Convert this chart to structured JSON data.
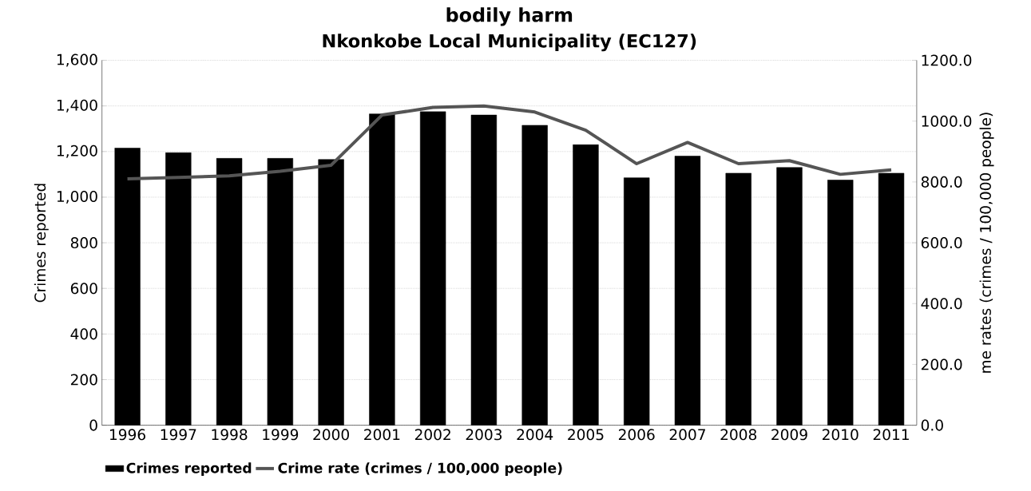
{
  "chart_data": {
    "type": "bar",
    "title": "bodily harm",
    "subtitle": "Nkonkobe Local Municipality (EC127)",
    "ylabel": "Crimes reported",
    "y2label": "me rates (crimes / 100,000 people)",
    "categories": [
      "1996",
      "1997",
      "1998",
      "1999",
      "2000",
      "2001",
      "2002",
      "2003",
      "2004",
      "2005",
      "2006",
      "2007",
      "2008",
      "2009",
      "2010",
      "2011"
    ],
    "series": [
      {
        "name": "Crimes reported",
        "color": "#000000",
        "values": [
          1215,
          1195,
          1170,
          1170,
          1165,
          1365,
          1375,
          1360,
          1315,
          1230,
          1085,
          1180,
          1105,
          1130,
          1075,
          1105
        ]
      },
      {
        "name": "Crime rate (crimes / 100,000 people)",
        "type": "line",
        "axis": "y2",
        "color": "#555555",
        "values": [
          810,
          815,
          820,
          835,
          855,
          1020,
          1045,
          1050,
          1030,
          970,
          860,
          930,
          860,
          870,
          825,
          840
        ]
      }
    ],
    "ylim": [
      0,
      1600
    ],
    "yticks": [
      {
        "value": 0,
        "label": "0"
      },
      {
        "value": 200,
        "label": "200"
      },
      {
        "value": 400,
        "label": "400"
      },
      {
        "value": 600,
        "label": "600"
      },
      {
        "value": 800,
        "label": "800"
      },
      {
        "value": 1000,
        "label": "1,000"
      },
      {
        "value": 1200,
        "label": "1,200"
      },
      {
        "value": 1400,
        "label": "1,400"
      },
      {
        "value": 1600,
        "label": "1,600"
      }
    ],
    "y2lim": [
      0,
      1200
    ],
    "y2ticks": [
      {
        "value": 0,
        "label": "0.0"
      },
      {
        "value": 200,
        "label": "200.0"
      },
      {
        "value": 400,
        "label": "400.0"
      },
      {
        "value": 600,
        "label": "600.0"
      },
      {
        "value": 800,
        "label": "800.0"
      },
      {
        "value": 1000,
        "label": "1000.0"
      },
      {
        "value": 1200,
        "label": "1200.0"
      }
    ],
    "grid": "y",
    "legend": "bottom",
    "marker": "none",
    "line_style": "solid"
  }
}
